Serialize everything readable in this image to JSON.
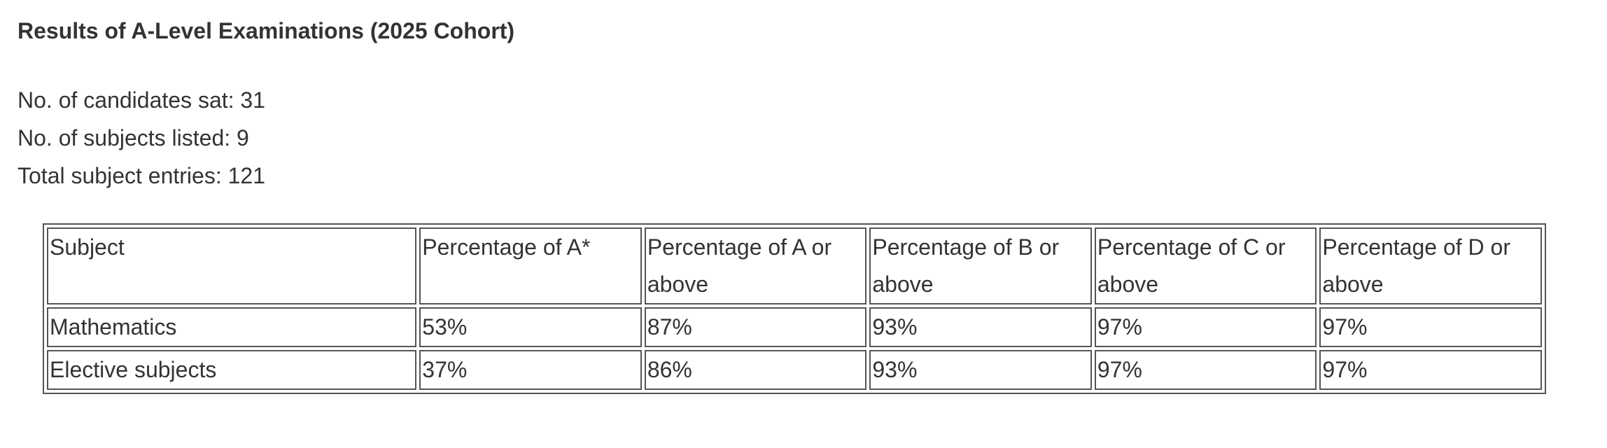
{
  "header": {
    "title": "Results of A-Level Examinations (2025 Cohort)"
  },
  "summary": [
    "No. of candidates sat: 31",
    "No. of subjects listed: 9",
    "Total subject entries: 121"
  ],
  "table": {
    "columns": [
      "Subject",
      "Percentage of A*",
      "Percentage of A or above",
      "Percentage of B or above",
      "Percentage of C or above",
      "Percentage of D or above"
    ],
    "rows": [
      [
        "Mathematics",
        "53%",
        "87%",
        "93%",
        "97%",
        "97%"
      ],
      [
        "Elective subjects",
        "37%",
        "86%",
        "93%",
        "97%",
        "97%"
      ]
    ]
  }
}
